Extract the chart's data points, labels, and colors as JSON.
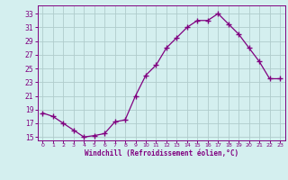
{
  "x": [
    0,
    1,
    2,
    3,
    4,
    5,
    6,
    7,
    8,
    9,
    10,
    11,
    12,
    13,
    14,
    15,
    16,
    17,
    18,
    19,
    20,
    21,
    22,
    23
  ],
  "y": [
    18.5,
    18.0,
    17.0,
    16.0,
    15.0,
    15.2,
    15.5,
    17.2,
    17.5,
    21.0,
    24.0,
    25.5,
    28.0,
    29.5,
    31.0,
    32.0,
    32.0,
    33.0,
    31.5,
    30.0,
    28.0,
    26.0,
    23.5,
    23.5
  ],
  "line_color": "#800080",
  "marker": "+",
  "marker_size": 4,
  "marker_linewidth": 1.0,
  "bg_color": "#d4efef",
  "grid_color": "#b0cccc",
  "xlabel": "Windchill (Refroidissement éolien,°C)",
  "xlabel_color": "#800080",
  "yticks": [
    15,
    17,
    19,
    21,
    23,
    25,
    27,
    29,
    31,
    33
  ],
  "xticks": [
    0,
    1,
    2,
    3,
    4,
    5,
    6,
    7,
    8,
    9,
    10,
    11,
    12,
    13,
    14,
    15,
    16,
    17,
    18,
    19,
    20,
    21,
    22,
    23
  ],
  "ylim": [
    14.5,
    34.2
  ],
  "xlim": [
    -0.5,
    23.5
  ]
}
